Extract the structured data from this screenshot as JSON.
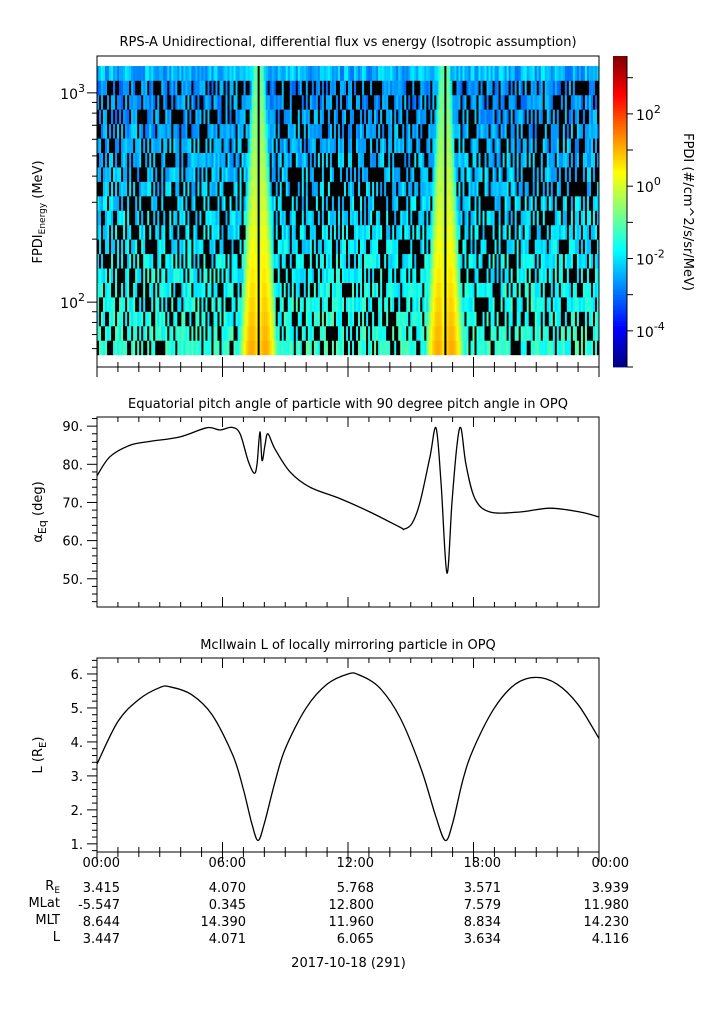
{
  "chart_data": [
    {
      "type": "heatmap",
      "title": "RPS-A Unidirectional, differential flux vs energy (Isotropic assumption)",
      "ylabel": "FPDI",
      "ylabel_sub": "Energy",
      "ylabel_unit": " (MeV)",
      "yscale": "log",
      "ylim": [
        49,
        1500
      ],
      "yticks": [
        {
          "value": 100,
          "base": "10",
          "exp": "2"
        },
        {
          "value": 1000,
          "base": "10",
          "exp": "3"
        }
      ],
      "xlim_hours": [
        0,
        24
      ],
      "energy_range_mev": [
        56,
        1343
      ],
      "energy_channels": 20,
      "belt_crossings_hours": [
        7.72,
        16.62
      ],
      "colorbar": {
        "label": "FPDI (#/cm^2/s/sr/MeV)",
        "scale": "log",
        "log_range": [
          -5,
          3.6
        ],
        "ticks": [
          {
            "log": 2,
            "base": "10",
            "exp": "2"
          },
          {
            "log": 0,
            "base": "10",
            "exp": "0"
          },
          {
            "log": -2,
            "base": "10",
            "exp": "-2"
          },
          {
            "log": -4,
            "base": "10",
            "exp": "-4"
          }
        ]
      }
    },
    {
      "type": "line",
      "title": "Equatorial pitch angle of particle with 90 degree pitch angle in OPQ",
      "ylabel": "α",
      "ylabel_sub": "Eq",
      "ylabel_unit": " (deg)",
      "ylim": [
        42.6,
        92.4
      ],
      "yticks": [
        "50.",
        "60.",
        "70.",
        "80.",
        "90."
      ],
      "x_hours": [
        0,
        0.62,
        1.58,
        2.53,
        3.97,
        5.26,
        5.88,
        6.45,
        6.84,
        7.22,
        7.51,
        7.65,
        7.79,
        7.89,
        8.03,
        8.17,
        8.51,
        9.23,
        10.18,
        11.62,
        13.05,
        14.49,
        14.68,
        15.06,
        15.44,
        15.92,
        16.21,
        16.45,
        16.73,
        16.97,
        17.21,
        17.4,
        17.64,
        18.07,
        18.79,
        20.22,
        21.66,
        23.09,
        24
      ],
      "y": [
        77,
        82,
        85,
        86,
        87.2,
        89.6,
        89,
        89.7,
        88,
        81,
        77.7,
        80,
        88.5,
        81,
        85,
        88,
        84,
        78,
        74,
        71,
        67.5,
        63.5,
        63,
        64.5,
        70,
        82,
        89.5,
        75,
        51.5,
        70,
        85,
        89.5,
        80,
        71,
        67.5,
        67.5,
        68.5,
        67.5,
        66.2
      ]
    },
    {
      "type": "line",
      "title": "McIlwain L of locally mirroring particle in OPQ",
      "ylabel": "L (R",
      "ylabel_sub": "E",
      "ylabel_unit": ")",
      "ylim": [
        0.76,
        6.47
      ],
      "yticks": [
        "1.",
        "2.",
        "3.",
        "4.",
        "5.",
        "6."
      ],
      "x_hours": [
        0,
        1,
        2,
        3,
        3.5,
        4.5,
        5.5,
        6.5,
        7,
        7.4,
        7.7,
        8,
        8.5,
        9,
        10,
        11,
        12,
        12.5,
        13.5,
        14.5,
        15.5,
        16.2,
        16.65,
        17,
        17.5,
        18,
        19,
        20,
        21,
        22,
        23,
        24
      ],
      "y": [
        3.35,
        4.6,
        5.25,
        5.6,
        5.62,
        5.4,
        4.8,
        3.6,
        2.6,
        1.6,
        1.1,
        1.6,
        2.8,
        3.8,
        5.0,
        5.7,
        6.0,
        5.98,
        5.6,
        4.7,
        3.2,
        1.8,
        1.1,
        1.6,
        2.9,
        3.8,
        5.0,
        5.7,
        5.9,
        5.7,
        5.1,
        4.1
      ]
    }
  ],
  "axis_table": {
    "times": [
      "00:00",
      "06:00",
      "12:00",
      "18:00",
      "00:00"
    ],
    "rows": [
      {
        "label": "R",
        "label_sub": "E",
        "values": [
          "3.415",
          "4.070",
          "5.768",
          "3.571",
          "3.939"
        ]
      },
      {
        "label": "MLat",
        "label_sub": "",
        "values": [
          "-5.547",
          "0.345",
          "12.800",
          "7.579",
          "11.980"
        ]
      },
      {
        "label": "MLT",
        "label_sub": "",
        "values": [
          "8.644",
          "14.390",
          "11.960",
          "8.834",
          "14.230"
        ]
      },
      {
        "label": "L",
        "label_sub": "",
        "values": [
          "3.447",
          "4.071",
          "6.065",
          "3.634",
          "4.116"
        ]
      }
    ],
    "date": "2017-10-18 (291)"
  }
}
